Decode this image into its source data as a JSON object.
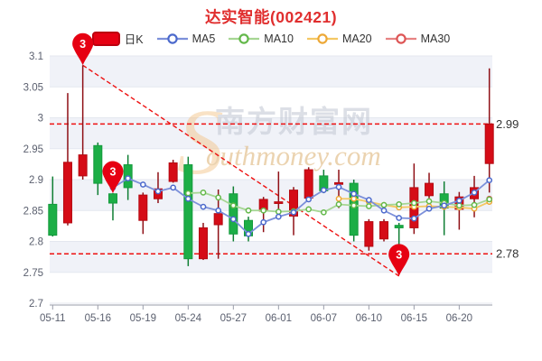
{
  "title": "达实智能(002421)",
  "legend": {
    "items": [
      {
        "label": "日K",
        "type": "candle"
      },
      {
        "label": "MA5",
        "type": "line",
        "line": "#7c90da",
        "marker": "#4b69cc"
      },
      {
        "label": "MA10",
        "type": "line",
        "line": "#a6d693",
        "marker": "#63b84a"
      },
      {
        "label": "MA20",
        "type": "line",
        "line": "#f4c863",
        "marker": "#eda836"
      },
      {
        "label": "MA30",
        "type": "line",
        "line": "#e78383",
        "marker": "#dd5555"
      }
    ]
  },
  "colors": {
    "title": "#e02e2e",
    "up_body": "#d50c17",
    "up_border": "#b40a12",
    "up_wick": "#8f1016",
    "down_body": "#1cae46",
    "down_border": "#149a3c",
    "down_wick": "#0f7e33",
    "ref_line": "#ee1111",
    "pin": "#e60012",
    "pin_text": "#ffffff",
    "band": "#f0f2f8",
    "grid": "#e4e7ef",
    "axis": "#9a9daa",
    "axis_text": "#5a5f6e",
    "right_label_text": "#333333",
    "kline_swatch": "#e60012",
    "kline_swatch_border": "#bb000e",
    "watermark_gray": "#c6cbd6",
    "watermark_orange": "#f3c488",
    "watermark_tan": "#dfb77c"
  },
  "chart_data": {
    "type": "candlestick",
    "title": "达实智能(002421)",
    "ylim": [
      2.7,
      3.1
    ],
    "y_ticks": [
      "3.1",
      "3.05",
      "3",
      "2.95",
      "2.9",
      "2.85",
      "2.8",
      "2.75",
      "2.7"
    ],
    "y_tick_values": [
      3.1,
      3.05,
      3.0,
      2.95,
      2.9,
      2.85,
      2.8,
      2.75,
      2.7
    ],
    "x_tick_labels": [
      "05-11",
      "05-16",
      "05-19",
      "05-24",
      "05-27",
      "06-01",
      "06-07",
      "06-10",
      "06-15",
      "06-20"
    ],
    "x_tick_indices": [
      0,
      3,
      6,
      9,
      12,
      15,
      18,
      21,
      24,
      27
    ],
    "grid": true,
    "legend_position": "top",
    "candles": [
      {
        "date": "05-11",
        "open": 2.86,
        "close": 2.81,
        "high": 2.905,
        "low": 2.808
      },
      {
        "date": "05-12",
        "open": 2.83,
        "close": 2.928,
        "high": 3.04,
        "low": 2.826
      },
      {
        "date": "05-13",
        "open": 2.906,
        "close": 2.94,
        "high": 3.085,
        "low": 2.9
      },
      {
        "date": "05-16",
        "open": 2.955,
        "close": 2.894,
        "high": 2.96,
        "low": 2.875
      },
      {
        "date": "05-17",
        "open": 2.877,
        "close": 2.862,
        "high": 2.878,
        "low": 2.834
      },
      {
        "date": "05-18",
        "open": 2.924,
        "close": 2.887,
        "high": 2.94,
        "low": 2.867
      },
      {
        "date": "05-19",
        "open": 2.834,
        "close": 2.875,
        "high": 2.879,
        "low": 2.812
      },
      {
        "date": "05-20",
        "open": 2.869,
        "close": 2.885,
        "high": 2.912,
        "low": 2.862
      },
      {
        "date": "05-23",
        "open": 2.897,
        "close": 2.927,
        "high": 2.932,
        "low": 2.895
      },
      {
        "date": "05-24",
        "open": 2.924,
        "close": 2.772,
        "high": 2.937,
        "low": 2.76
      },
      {
        "date": "05-25",
        "open": 2.772,
        "close": 2.822,
        "high": 2.83,
        "low": 2.77
      },
      {
        "date": "05-26",
        "open": 2.827,
        "close": 2.845,
        "high": 2.884,
        "low": 2.772
      },
      {
        "date": "05-27",
        "open": 2.877,
        "close": 2.812,
        "high": 2.889,
        "low": 2.8
      },
      {
        "date": "05-30",
        "open": 2.834,
        "close": 2.809,
        "high": 2.84,
        "low": 2.8
      },
      {
        "date": "05-31",
        "open": 2.849,
        "close": 2.868,
        "high": 2.872,
        "low": 2.815
      },
      {
        "date": "06-01",
        "open": 2.862,
        "close": 2.864,
        "high": 2.913,
        "low": 2.839
      },
      {
        "date": "06-02",
        "open": 2.841,
        "close": 2.883,
        "high": 2.888,
        "low": 2.81
      },
      {
        "date": "06-06",
        "open": 2.87,
        "close": 2.916,
        "high": 2.92,
        "low": 2.868
      },
      {
        "date": "06-07",
        "open": 2.906,
        "close": 2.882,
        "high": 2.916,
        "low": 2.878
      },
      {
        "date": "06-08",
        "open": 2.893,
        "close": 2.895,
        "high": 2.916,
        "low": 2.854
      },
      {
        "date": "06-09",
        "open": 2.894,
        "close": 2.81,
        "high": 2.9,
        "low": 2.8
      },
      {
        "date": "06-10",
        "open": 2.792,
        "close": 2.832,
        "high": 2.836,
        "low": 2.785
      },
      {
        "date": "06-13",
        "open": 2.804,
        "close": 2.832,
        "high": 2.836,
        "low": 2.8
      },
      {
        "date": "06-14",
        "open": 2.826,
        "close": 2.822,
        "high": 2.83,
        "low": 2.755
      },
      {
        "date": "06-15",
        "open": 2.822,
        "close": 2.887,
        "high": 2.926,
        "low": 2.812
      },
      {
        "date": "06-16",
        "open": 2.874,
        "close": 2.894,
        "high": 2.911,
        "low": 2.87
      },
      {
        "date": "06-17",
        "open": 2.877,
        "close": 2.854,
        "high": 2.897,
        "low": 2.81
      },
      {
        "date": "06-20",
        "open": 2.852,
        "close": 2.872,
        "high": 2.88,
        "low": 2.819
      },
      {
        "date": "06-21",
        "open": 2.869,
        "close": 2.887,
        "high": 2.906,
        "low": 2.839
      },
      {
        "date": "06-22",
        "open": 2.926,
        "close": 2.99,
        "high": 3.08,
        "low": 2.879
      }
    ],
    "series": [
      {
        "name": "MA5",
        "values": [
          null,
          null,
          null,
          null,
          2.887,
          2.902,
          2.892,
          2.881,
          2.887,
          2.869,
          2.856,
          2.85,
          2.836,
          2.812,
          2.831,
          2.84,
          2.847,
          2.868,
          2.883,
          2.888,
          2.877,
          2.867,
          2.85,
          2.838,
          2.837,
          2.853,
          2.858,
          2.866,
          2.879,
          2.899
        ]
      },
      {
        "name": "MA10",
        "values": [
          null,
          null,
          null,
          null,
          null,
          null,
          null,
          null,
          null,
          2.878,
          2.879,
          2.871,
          2.858,
          2.85,
          2.85,
          2.848,
          2.849,
          2.852,
          2.847,
          2.86,
          2.858,
          2.857,
          2.859,
          2.86,
          2.862,
          2.865,
          2.862,
          2.858,
          2.859,
          2.868
        ]
      },
      {
        "name": "MA20",
        "values": [
          null,
          null,
          null,
          null,
          null,
          null,
          null,
          null,
          null,
          null,
          null,
          null,
          null,
          null,
          null,
          null,
          null,
          null,
          null,
          2.869,
          2.869,
          2.864,
          2.859,
          2.855,
          2.856,
          2.857,
          2.856,
          2.855,
          2.853,
          2.864
        ]
      },
      {
        "name": "MA30",
        "values": [
          null,
          null,
          null,
          null,
          null,
          null,
          null,
          null,
          null,
          null,
          null,
          null,
          null,
          null,
          null,
          null,
          null,
          null,
          null,
          null,
          null,
          null,
          null,
          null,
          null,
          null,
          null,
          null,
          null,
          2.869
        ]
      }
    ],
    "ref_lines": [
      {
        "value": 2.99,
        "label": "2.99"
      },
      {
        "value": 2.78,
        "label": "2.78"
      }
    ],
    "trend_line": {
      "from_index": 2,
      "from_value": 3.085,
      "to_index": 23,
      "to_value": 2.744
    },
    "markers": [
      {
        "index": 2,
        "value": 3.085,
        "label": "3"
      },
      {
        "index": 4,
        "value": 2.878,
        "label": "3"
      },
      {
        "index": 23,
        "value": 2.744,
        "label": "3"
      }
    ],
    "watermark": {
      "initial": "S",
      "text_cn": "南方财富网",
      "text_en": "outhmoney.com"
    }
  }
}
